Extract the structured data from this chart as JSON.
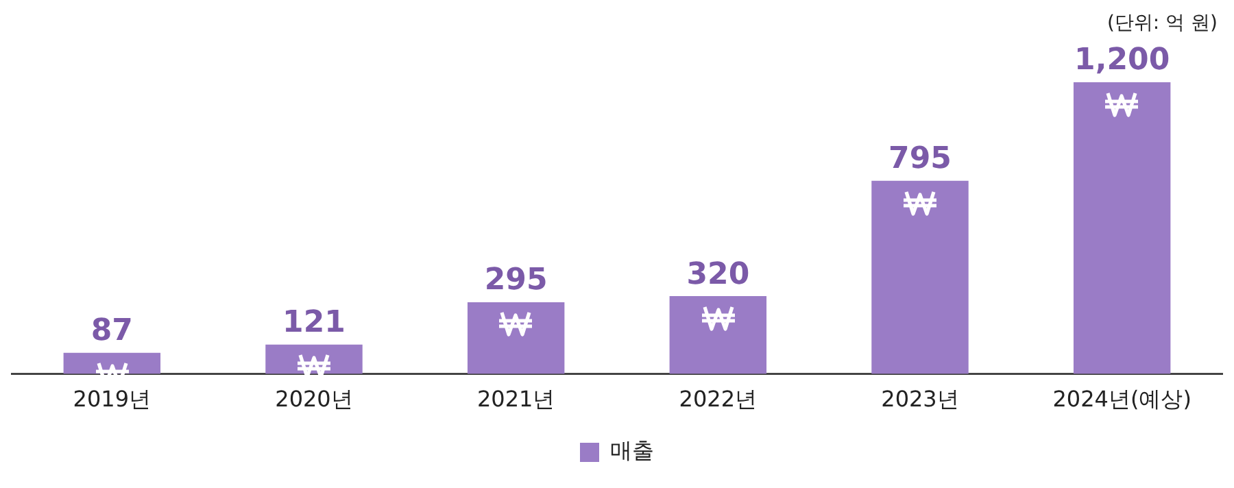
{
  "chart_data": {
    "type": "bar",
    "categories": [
      "2019년",
      "2020년",
      "2021년",
      "2022년",
      "2023년",
      "2024년(예상)"
    ],
    "series": [
      {
        "name": "매출",
        "color": "#9a7cc6",
        "values": [
          87,
          121,
          295,
          320,
          795,
          1200
        ],
        "value_labels": [
          "87",
          "121",
          "295",
          "320",
          "795",
          "1,200"
        ]
      }
    ],
    "annotations": [
      "(단위: 억 원)"
    ],
    "legend": "bottom",
    "grid": false
  }
}
